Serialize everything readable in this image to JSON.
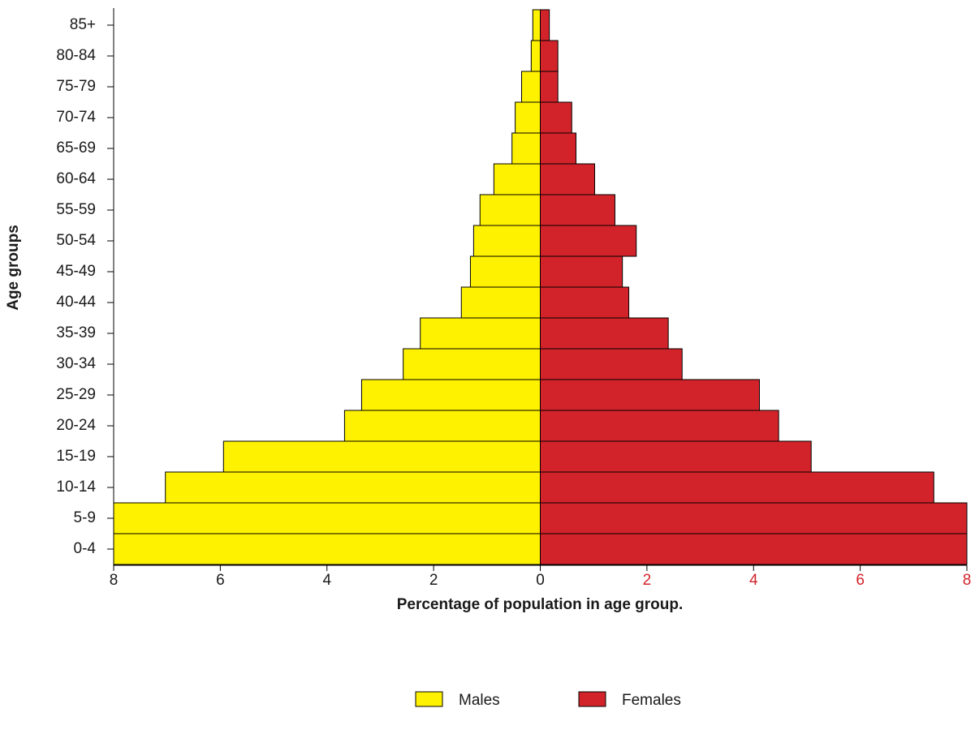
{
  "chart_data": {
    "type": "pyramid",
    "xlabel": "Percentage of population in age group.",
    "ylabel": "Age groups",
    "categories": [
      "0-4",
      "5-9",
      "10-14",
      "15-19",
      "20-24",
      "25-29",
      "30-34",
      "35-39",
      "40-44",
      "45-49",
      "50-54",
      "55-59",
      "60-64",
      "65-69",
      "70-74",
      "75-79",
      "80-84",
      "85+"
    ],
    "series": [
      {
        "name": "Males",
        "color": "#fff200",
        "values": [
          -8,
          -8,
          -7.03,
          -5.94,
          -3.67,
          -3.35,
          -2.57,
          -2.25,
          -1.48,
          -1.31,
          -1.25,
          -1.13,
          -0.87,
          -0.53,
          -0.47,
          -0.35,
          -0.17,
          -0.14
        ]
      },
      {
        "name": "Females",
        "color": "#d2232a",
        "values": [
          8,
          8,
          7.38,
          5.08,
          4.47,
          4.11,
          2.66,
          2.4,
          1.66,
          1.54,
          1.8,
          1.4,
          1.02,
          0.67,
          0.59,
          0.33,
          0.33,
          0.17
        ]
      }
    ],
    "xlim": [
      -8,
      8
    ],
    "xticks": [
      {
        "value": -8,
        "label": "8"
      },
      {
        "value": -6,
        "label": "6"
      },
      {
        "value": -4,
        "label": "4"
      },
      {
        "value": -2,
        "label": "2"
      },
      0,
      2,
      4,
      6,
      8
    ],
    "right_tick_color": "#d2232a"
  }
}
